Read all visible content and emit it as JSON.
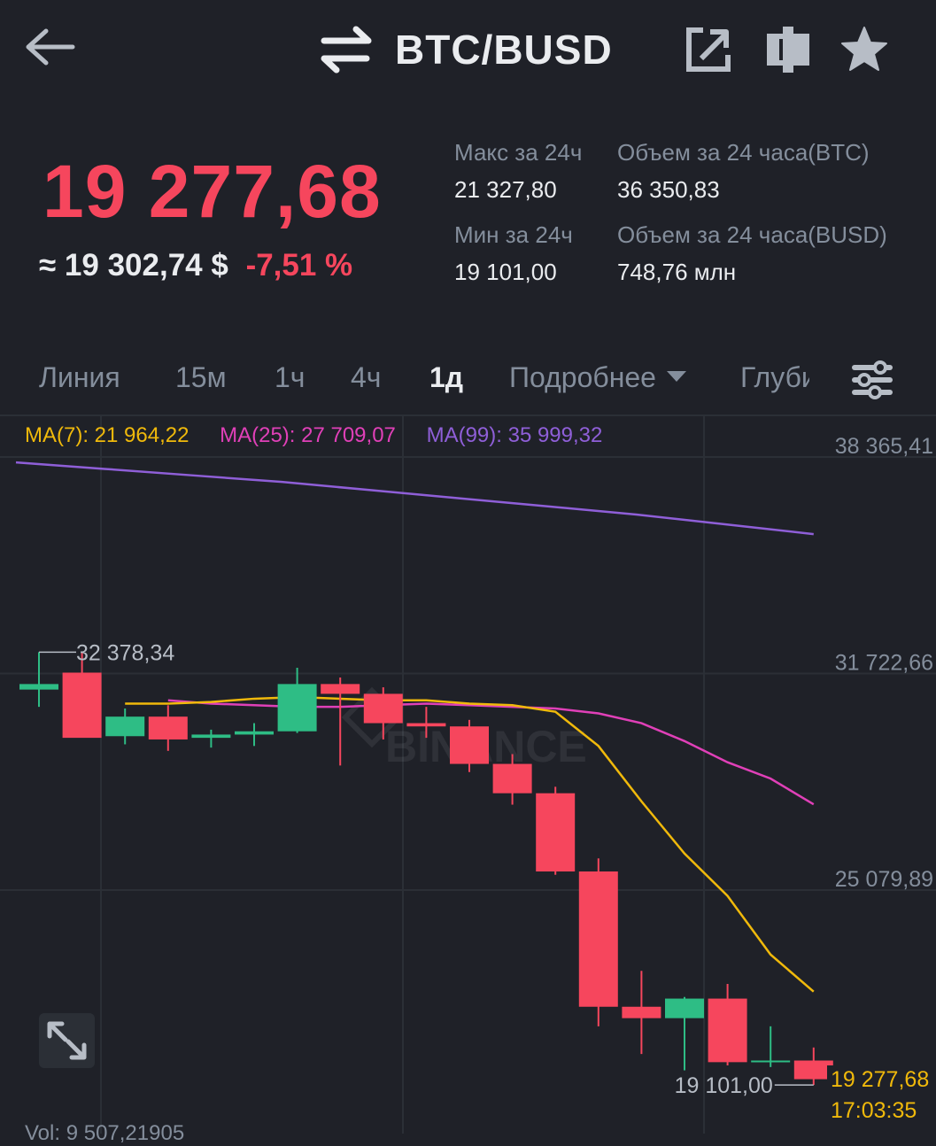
{
  "header": {
    "pair": "BTC/BUSD",
    "icons": [
      "back-arrow-icon",
      "swap-icon",
      "share-icon",
      "margin-icon",
      "star-icon"
    ]
  },
  "ticker": {
    "last_price": "19 277,68",
    "usd_approx": "≈ 19 302,74 $",
    "change_pct": "-7,51 %",
    "high_label": "Макс за 24ч",
    "high_value": "21 327,80",
    "low_label": "Мин за 24ч",
    "low_value": "19 101,00",
    "vol_btc_label": "Объем за 24 часа(BTC)",
    "vol_btc_value": "36 350,83",
    "vol_busd_label": "Объем за 24 часа(BUSD)",
    "vol_busd_value": "748,76 млн"
  },
  "tabs": {
    "line": "Линия",
    "m15": "15м",
    "h1": "1ч",
    "h4": "4ч",
    "d1": "1д",
    "more": "Подробнее",
    "depth": "Глубина"
  },
  "ma": {
    "ma7": "MA(7): 21 964,22",
    "ma25": "MA(25): 27 709,07",
    "ma99": "MA(99): 35 999,32"
  },
  "colors": {
    "up": "#2ebd85",
    "down": "#f6465d",
    "ma7": "#f0b90b",
    "ma25": "#e040b8",
    "ma99": "#8f5fd8"
  },
  "chart_data": {
    "type": "candlestick",
    "y_ticks": [
      "38 365,41",
      "31 722,66",
      "25 079,89"
    ],
    "y_tick_values": [
      38365.41,
      31722.66,
      25079.89
    ],
    "ylim": [
      18500,
      39000
    ],
    "high_marker": "32 378,34",
    "low_marker": "19 101,00",
    "current_price": "19 277,68",
    "countdown": "17:03:35",
    "candles": [
      {
        "o": 31230,
        "h": 32378,
        "l": 30700,
        "c": 31400
      },
      {
        "o": 31750,
        "h": 32400,
        "l": 29800,
        "c": 29750
      },
      {
        "o": 29800,
        "h": 30650,
        "l": 29550,
        "c": 30400
      },
      {
        "o": 30400,
        "h": 30750,
        "l": 29350,
        "c": 29700
      },
      {
        "o": 29750,
        "h": 30000,
        "l": 29450,
        "c": 29850
      },
      {
        "o": 29850,
        "h": 30200,
        "l": 29500,
        "c": 29950
      },
      {
        "o": 29950,
        "h": 31900,
        "l": 29900,
        "c": 31400
      },
      {
        "o": 31400,
        "h": 31600,
        "l": 28900,
        "c": 31100
      },
      {
        "o": 31100,
        "h": 31300,
        "l": 29700,
        "c": 30200
      },
      {
        "o": 30200,
        "h": 30700,
        "l": 29750,
        "c": 30100
      },
      {
        "o": 30100,
        "h": 30300,
        "l": 28700,
        "c": 28950
      },
      {
        "o": 28950,
        "h": 29250,
        "l": 27700,
        "c": 28050
      },
      {
        "o": 28050,
        "h": 28250,
        "l": 25550,
        "c": 25650
      },
      {
        "o": 25650,
        "h": 26050,
        "l": 20900,
        "c": 21500
      },
      {
        "o": 21500,
        "h": 22600,
        "l": 20050,
        "c": 21150
      },
      {
        "o": 21150,
        "h": 21800,
        "l": 19550,
        "c": 21750
      },
      {
        "o": 21750,
        "h": 22200,
        "l": 19700,
        "c": 19800
      },
      {
        "o": 19800,
        "h": 20900,
        "l": 19650,
        "c": 19850
      },
      {
        "o": 19850,
        "h": 20250,
        "l": 19101,
        "c": 19277.68
      }
    ],
    "ma7": [
      30800,
      30800,
      30850,
      30950,
      31000,
      30950,
      30900,
      30900,
      30800,
      30750,
      30550,
      29500,
      27800,
      26200,
      24900,
      23100,
      21964.22
    ],
    "ma25": [
      30900,
      30800,
      30750,
      30700,
      30700,
      30750,
      30800,
      30750,
      30700,
      30650,
      30500,
      30200,
      29650,
      29000,
      28500,
      27709.07
    ],
    "ma99": [
      38200,
      38000,
      37800,
      37600,
      37350,
      37100,
      36850,
      36600,
      36300,
      35999.32
    ]
  },
  "volume": {
    "label": "Vol: 9 507,21905"
  }
}
